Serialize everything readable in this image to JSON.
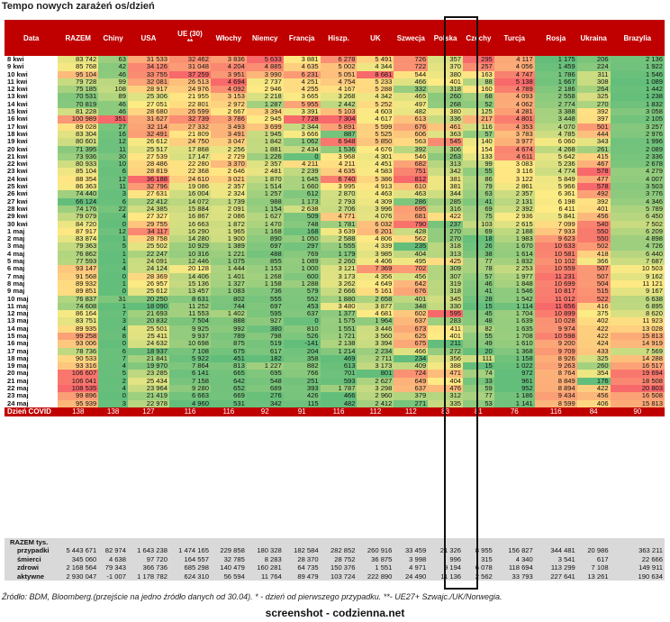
{
  "title": "Tempo nowych zarażeń os/dzień",
  "columns": [
    "Data",
    "RAZEM",
    "Chiny",
    "USA",
    "UE (30)\n**",
    "Włochy",
    "Niemcy",
    "Francja",
    "Hiszp.",
    "UK",
    "Szwecja",
    "Polska",
    "Czechy",
    "Turcja",
    "Rosja",
    "Ukraina",
    "Brazylia"
  ],
  "rows": [
    [
      "8 kwi",
      "83 742",
      "63",
      "31 533",
      "32 462",
      "3 836",
      "5 633",
      "3 881",
      "6 278",
      "5 491",
      "726",
      "357",
      "295",
      "4 117",
      "1 175",
      "206",
      "2 136"
    ],
    [
      "9 kwi",
      "85 768",
      "42",
      "34 126",
      "31 048",
      "4 204",
      "4 885",
      "4 635",
      "5 002",
      "4 344",
      "722",
      "370",
      "257",
      "4 056",
      "1 459",
      "224",
      "1 922"
    ],
    [
      "10 kwi",
      "95 104",
      "46",
      "33 755",
      "37 259",
      "3 951",
      "3 990",
      "6 231",
      "5 051",
      "8 681",
      "544",
      "380",
      "163",
      "4 747",
      "1 786",
      "311",
      "1 546"
    ],
    [
      "11 kwi",
      "79 728",
      "99",
      "32 081",
      "26 513",
      "4 694",
      "2 737",
      "4 251",
      "4 754",
      "5 233",
      "466",
      "401",
      "88",
      "5 138",
      "1 667",
      "308",
      "1 089"
    ],
    [
      "12 kwi",
      "75 185",
      "108",
      "28 917",
      "24 976",
      "4 092",
      "2 946",
      "4 255",
      "4 167",
      "5 288",
      "332",
      "318",
      "160",
      "4 789",
      "2 186",
      "264",
      "1 442"
    ],
    [
      "13 kwi",
      "70 531",
      "89",
      "25 306",
      "21 955",
      "3 153",
      "2 218",
      "3 665",
      "3 268",
      "4 342",
      "465",
      "260",
      "68",
      "4 093",
      "2 558",
      "325",
      "1 238"
    ],
    [
      "14 kwi",
      "70 819",
      "46",
      "27 051",
      "22 801",
      "2 972",
      "1 287",
      "5 955",
      "2 442",
      "5 252",
      "497",
      "268",
      "52",
      "4 062",
      "2 774",
      "270",
      "1 832"
    ],
    [
      "15 kwi",
      "81 228",
      "46",
      "28 680",
      "26 599",
      "2 667",
      "3 394",
      "3 391",
      "5 103",
      "4 603",
      "482",
      "380",
      "125",
      "4 281",
      "3 388",
      "392",
      "3 058"
    ],
    [
      "16 kwi",
      "100 989",
      "351",
      "31 627",
      "32 739",
      "3 786",
      "2 945",
      "7 728",
      "7 304",
      "4 617",
      "613",
      "336",
      "217",
      "4 801",
      "3 448",
      "397",
      "2 105"
    ],
    [
      "17 kwi",
      "89 028",
      "27",
      "32 114",
      "27 332",
      "3 493",
      "3 699",
      "2 344",
      "5 891",
      "5 599",
      "676",
      "461",
      "116",
      "4 353",
      "4 070",
      "501",
      "3 257"
    ],
    [
      "18 kwi",
      "83 304",
      "16",
      "32 491",
      "21 809",
      "3 491",
      "1 945",
      "3 666",
      "887",
      "5 525",
      "606",
      "363",
      "57",
      "3 783",
      "4 785",
      "444",
      "2 976"
    ],
    [
      "19 kwi",
      "80 601",
      "12",
      "26 612",
      "24 750",
      "3 047",
      "1 842",
      "1 062",
      "6 948",
      "5 850",
      "563",
      "545",
      "140",
      "3 977",
      "6 060",
      "343",
      "1 996"
    ],
    [
      "20 kwi",
      "71 395",
      "11",
      "25 517",
      "17 868",
      "2 256",
      "1 881",
      "2 434",
      "1 536",
      "4 676",
      "392",
      "306",
      "154",
      "4 674",
      "4 268",
      "261",
      "2 089"
    ],
    [
      "21 kwi",
      "73 936",
      "30",
      "27 539",
      "17 147",
      "2 729",
      "1 226",
      "0",
      "3 968",
      "4 301",
      "546",
      "263",
      "133",
      "4 611",
      "5 642",
      "415",
      "2 336"
    ],
    [
      "22 kwi",
      "80 933",
      "10",
      "28 486",
      "22 280",
      "3 370",
      "2 357",
      "4 211",
      "4 211",
      "4 451",
      "682",
      "313",
      "99",
      "3 083",
      "5 236",
      "467",
      "2 678"
    ],
    [
      "23 kwi",
      "85 104",
      "6",
      "28 819",
      "22 368",
      "2 646",
      "2 481",
      "2 239",
      "4 635",
      "4 583",
      "751",
      "342",
      "55",
      "3 116",
      "4 774",
      "578",
      "4 279"
    ],
    [
      "24 kwi",
      "88 354",
      "12",
      "36 188",
      "24 610",
      "3 021",
      "1 870",
      "1 645",
      "6 740",
      "5 386",
      "812",
      "381",
      "86",
      "3 122",
      "5 849",
      "477",
      "4 007"
    ],
    [
      "25 kwi",
      "86 363",
      "11",
      "32 796",
      "19 086",
      "2 357",
      "1 514",
      "1 660",
      "3 995",
      "4 913",
      "610",
      "381",
      "79",
      "2 861",
      "5 966",
      "578",
      "3 503"
    ],
    [
      "26 kwi",
      "74 440",
      "3",
      "27 631",
      "16 004",
      "2 324",
      "1 257",
      "612",
      "2 870",
      "4 463",
      "463",
      "344",
      "63",
      "2 357",
      "6 361",
      "492",
      "3 776"
    ],
    [
      "27 kwi",
      "66 124",
      "6",
      "22 412",
      "14 072",
      "1 739",
      "988",
      "1 173",
      "2 793",
      "4 309",
      "286",
      "285",
      "41",
      "2 131",
      "6 198",
      "392",
      "4 346"
    ],
    [
      "28 kwi",
      "74 176",
      "22",
      "24 385",
      "15 884",
      "2 091",
      "1 154",
      "2 638",
      "2 706",
      "3 996",
      "695",
      "316",
      "69",
      "2 392",
      "6 411",
      "401",
      "5 789"
    ],
    [
      "29 kwi",
      "79 079",
      "4",
      "27 327",
      "16 867",
      "2 086",
      "1 627",
      "509",
      "4 771",
      "4 076",
      "681",
      "422",
      "75",
      "2 936",
      "5 841",
      "456",
      "6 450"
    ],
    [
      "30 kwi",
      "84 720",
      "0",
      "29 755",
      "16 663",
      "1 872",
      "1 470",
      "748",
      "1 781",
      "6 032",
      "790",
      "237",
      "103",
      "2 615",
      "7 099",
      "540",
      "7 502"
    ],
    [
      "1 maj",
      "87 917",
      "12",
      "34 117",
      "16 290",
      "1 965",
      "1 168",
      "168",
      "3 639",
      "6 201",
      "428",
      "270",
      "69",
      "2 188",
      "7 933",
      "550",
      "6 209"
    ],
    [
      "2 maj",
      "83 874",
      "1",
      "28 758",
      "14 280",
      "1 900",
      "890",
      "1 050",
      "2 588",
      "4 806",
      "562",
      "270",
      "18",
      "1 983",
      "9 623",
      "550",
      "4 898"
    ],
    [
      "3 maj",
      "79 363",
      "5",
      "25 502",
      "10 929",
      "1 389",
      "697",
      "297",
      "1 555",
      "4 339",
      "235",
      "318",
      "26",
      "1 670",
      "10 633",
      "502",
      "4 726"
    ],
    [
      "4 maj",
      "76 862",
      "1",
      "22 247",
      "10 316",
      "1 221",
      "488",
      "769",
      "1 179",
      "3 985",
      "404",
      "313",
      "38",
      "1 614",
      "10 581",
      "418",
      "6 440"
    ],
    [
      "5 maj",
      "77 593",
      "1",
      "24 091",
      "12 446",
      "1 075",
      "855",
      "1 089",
      "2 260",
      "4 406",
      "495",
      "425",
      "77",
      "1 832",
      "10 102",
      "366",
      "7 687"
    ],
    [
      "6 maj",
      "93 147",
      "4",
      "24 124",
      "20 128",
      "1 444",
      "1 153",
      "1 000",
      "3 121",
      "7 369",
      "702",
      "309",
      "78",
      "2 253",
      "10 559",
      "507",
      "10 503"
    ],
    [
      "7 maj",
      "91 568",
      "0",
      "28 369",
      "14 406",
      "1 401",
      "1 268",
      "600",
      "3 173",
      "4 356",
      "456",
      "307",
      "57",
      "1 977",
      "11 231",
      "507",
      "9 162"
    ],
    [
      "8 maj",
      "89 932",
      "1",
      "26 957",
      "15 136",
      "1 327",
      "1 158",
      "1 288",
      "3 262",
      "4 649",
      "642",
      "319",
      "46",
      "1 848",
      "10 699",
      "504",
      "11 121"
    ],
    [
      "9 maj",
      "89 851",
      "0",
      "25 612",
      "13 457",
      "1 083",
      "736",
      "579",
      "2 666",
      "5 161",
      "676",
      "318",
      "41",
      "1 546",
      "10 817",
      "515",
      "9 167"
    ],
    [
      "10 maj",
      "76 837",
      "31",
      "20 250",
      "8 631",
      "802",
      "555",
      "552",
      "1 880",
      "2 658",
      "401",
      "345",
      "28",
      "1 542",
      "11 012",
      "522",
      "6 638"
    ],
    [
      "11 maj",
      "74 608",
      "1",
      "18 090",
      "11 252",
      "744",
      "697",
      "453",
      "3 480",
      "3 877",
      "348",
      "330",
      "15",
      "1 114",
      "11 656",
      "416",
      "6 895"
    ],
    [
      "12 maj",
      "86 164",
      "7",
      "21 693",
      "11 553",
      "1 402",
      "595",
      "637",
      "1 377",
      "4 681",
      "602",
      "595",
      "45",
      "1 704",
      "10 899",
      "375",
      "8 620"
    ],
    [
      "13 maj",
      "83 751",
      "3",
      "20 832",
      "7 504",
      "888",
      "927",
      "0",
      "1 575",
      "1 964",
      "637",
      "283",
      "48",
      "1 639",
      "10 028",
      "402",
      "11 923"
    ],
    [
      "14 maj",
      "89 935",
      "4",
      "25 501",
      "9 925",
      "992",
      "380",
      "810",
      "1 551",
      "3 446",
      "673",
      "411",
      "82",
      "1 635",
      "9 974",
      "422",
      "13 028"
    ],
    [
      "15 maj",
      "99 258",
      "8",
      "25 411",
      "9 937",
      "789",
      "798",
      "526",
      "1 721",
      "3 560",
      "625",
      "401",
      "55",
      "1 708",
      "10 598",
      "422",
      "15 813"
    ],
    [
      "16 maj",
      "93 006",
      "0",
      "24 632",
      "10 698",
      "875",
      "519",
      "-141",
      "2 138",
      "3 394",
      "675",
      "211",
      "49",
      "1 610",
      "9 200",
      "424",
      "14 919"
    ],
    [
      "17 maj",
      "78 736",
      "6",
      "18 937",
      "7 108",
      "675",
      "617",
      "204",
      "1 214",
      "2 234",
      "466",
      "272",
      "20",
      "1 368",
      "9 709",
      "433",
      "7 569"
    ],
    [
      "18 maj",
      "90 533",
      "7",
      "21 841",
      "5 922",
      "451",
      "182",
      "358",
      "469",
      "2 711",
      "234",
      "356",
      "111",
      "1 158",
      "8 926",
      "325",
      "14 288"
    ],
    [
      "19 maj",
      "93 316",
      "4",
      "19 970",
      "7 864",
      "813",
      "1 227",
      "882",
      "613",
      "3 173",
      "409",
      "388",
      "15",
      "1 022",
      "9 263",
      "260",
      "16 517"
    ],
    [
      "20 maj",
      "106 607",
      "5",
      "23 285",
      "6 141",
      "665",
      "695",
      "766",
      "701",
      "801",
      "724",
      "471",
      "74",
      "972",
      "8 764",
      "354",
      "19 694"
    ],
    [
      "21 maj",
      "106 041",
      "2",
      "25 434",
      "7 158",
      "642",
      "548",
      "251",
      "593",
      "2 627",
      "649",
      "404",
      "33",
      "961",
      "8 849",
      "176",
      "18 508"
    ],
    [
      "22 maj",
      "108 535",
      "4",
      "23 964",
      "9 280",
      "652",
      "689",
      "393",
      "1 787",
      "3 298",
      "637",
      "476",
      "59",
      "952",
      "8 894",
      "422",
      "20 803"
    ],
    [
      "23 maj",
      "99 896",
      "0",
      "21 419",
      "6 663",
      "669",
      "276",
      "426",
      "466",
      "2 960",
      "379",
      "312",
      "77",
      "1 186",
      "9 434",
      "456",
      "16 508"
    ],
    [
      "24 maj",
      "95 939",
      "3",
      "22 978",
      "4 960",
      "531",
      "342",
      "115",
      "482",
      "2 412",
      "271",
      "335",
      "53",
      "1 141",
      "8 599",
      "406",
      "15 813"
    ]
  ],
  "covid_row": [
    "Dzień COVID",
    "138",
    "138",
    "127",
    "116",
    "116",
    "92",
    "91",
    "116",
    "112",
    "112",
    "83",
    "81",
    "76",
    "116",
    "84",
    "90"
  ],
  "totals_header": "RAZEM tys.",
  "totals": [
    [
      "przypadki",
      "5 443 671",
      "82 974",
      "1 643 238",
      "1 474 165",
      "229 858",
      "180 328",
      "182 584",
      "282 852",
      "260 916",
      "33 459",
      "21 326",
      "8 955",
      "156 827",
      "344 481",
      "20 986",
      "363 211"
    ],
    [
      "śmierci",
      "345 060",
      "4 638",
      "97 720",
      "164 557",
      "32 785",
      "8 283",
      "28 370",
      "28 752",
      "36 875",
      "3 998",
      "996",
      "315",
      "4 340",
      "3 541",
      "617",
      "22 666"
    ],
    [
      "zdrowi",
      "2 168 564",
      "79 343",
      "366 736",
      "685 298",
      "140 479",
      "160 281",
      "64 735",
      "150 376",
      "1 551",
      "4 971",
      "9 194",
      "6 078",
      "118 694",
      "113 299",
      "7 108",
      "149 911"
    ],
    [
      "aktywne",
      "2 930 047",
      "-1 007",
      "1 178 782",
      "624 310",
      "56 594",
      "11 764",
      "89 479",
      "103 724",
      "222 890",
      "24 490",
      "11 136",
      "2 562",
      "33 793",
      "227 641",
      "13 261",
      "190 634"
    ]
  ],
  "source": "Źródło: BDM, Bloomberg.(przejście na jedno źródło danych od 30.04).   * - dzień od pierwszego przypadku.  **- UE27+ Szwajc./UK/Norwegia.",
  "footer": "screenshot - codzienna.net"
}
